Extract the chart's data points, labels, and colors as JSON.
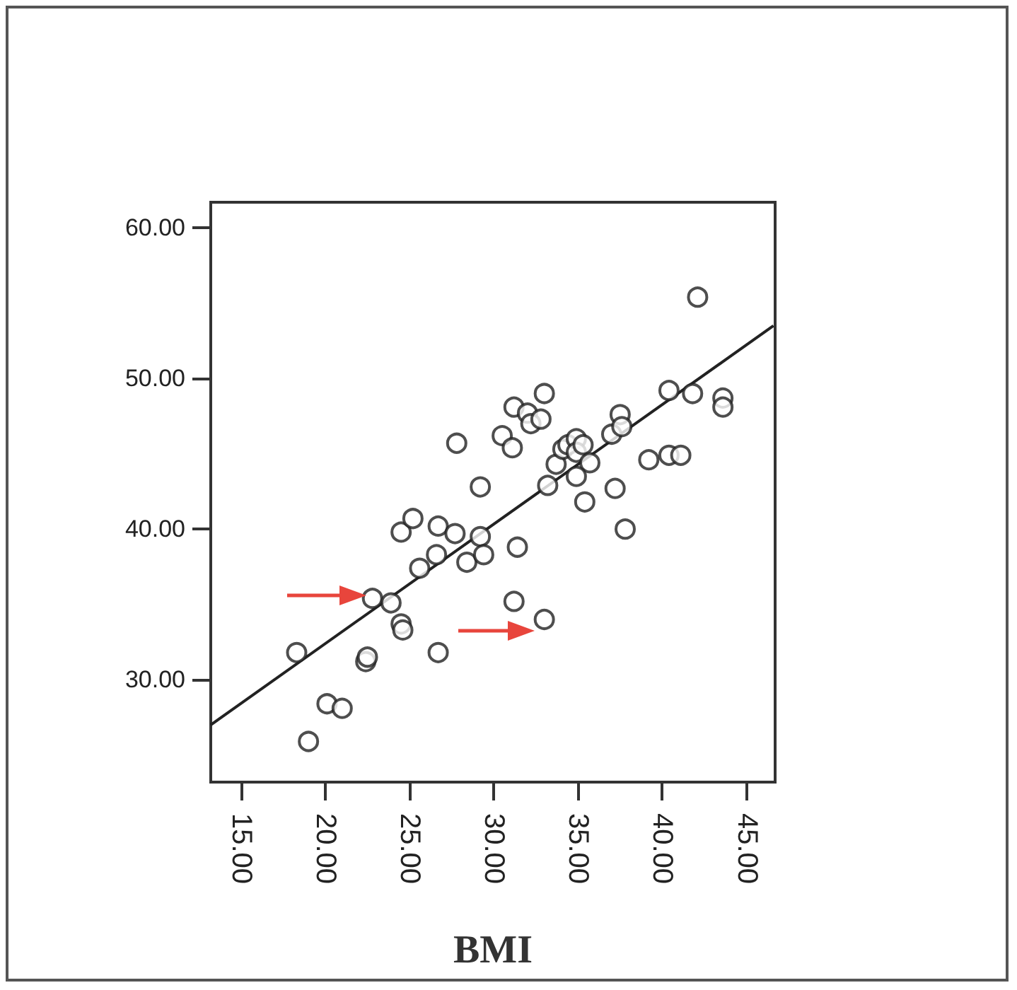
{
  "chart_data": {
    "type": "scatter",
    "xlabel": "BMI",
    "xlim": [
      13.2,
      46.7
    ],
    "ylim": [
      23.2,
      61.7
    ],
    "xticks": [
      {
        "value": 15,
        "label": "15.00"
      },
      {
        "value": 20,
        "label": "20.00"
      },
      {
        "value": 25,
        "label": "25.00"
      },
      {
        "value": 30,
        "label": "30.00"
      },
      {
        "value": 35,
        "label": "35.00"
      },
      {
        "value": 40,
        "label": "40.00"
      },
      {
        "value": 45,
        "label": "45.00"
      }
    ],
    "yticks": [
      {
        "value": 30,
        "label": "30.00"
      },
      {
        "value": 40,
        "label": "40.00"
      },
      {
        "value": 50,
        "label": "50.00"
      },
      {
        "value": 60,
        "label": "60.00"
      }
    ],
    "grid": false,
    "marker": "circle",
    "series": [
      {
        "color": "#222222",
        "x": [
          18.3,
          19.0,
          20.1,
          21.0,
          22.4,
          22.5,
          22.8,
          23.9,
          24.5,
          24.6,
          24.5,
          25.2,
          25.6,
          26.6,
          26.7,
          26.7,
          27.7,
          27.8,
          28.4,
          29.2,
          29.2,
          29.4,
          31.4,
          31.2,
          33.0,
          30.5,
          31.1,
          31.2,
          32.0,
          32.2,
          32.8,
          33.0,
          33.2,
          33.7,
          34.1,
          34.4,
          34.9,
          34.9,
          35.3,
          35.7,
          34.9,
          35.4,
          37.2,
          37.8,
          37.0,
          37.5,
          37.6,
          39.2,
          40.4,
          41.1,
          40.4,
          41.8,
          43.6,
          43.6,
          42.1
        ],
        "values": [
          31.8,
          25.9,
          28.4,
          28.1,
          31.2,
          31.5,
          35.4,
          35.1,
          33.7,
          33.3,
          39.8,
          40.7,
          37.4,
          38.3,
          40.2,
          31.8,
          39.7,
          45.7,
          37.8,
          42.8,
          39.5,
          38.3,
          38.8,
          35.2,
          34.0,
          46.2,
          45.4,
          48.1,
          47.7,
          47.0,
          47.3,
          49.0,
          42.9,
          44.3,
          45.3,
          45.6,
          46.0,
          45.1,
          45.6,
          44.4,
          43.5,
          41.8,
          42.7,
          40.0,
          46.3,
          47.6,
          46.8,
          44.6,
          44.9,
          44.9,
          49.2,
          49.0,
          48.7,
          48.1,
          55.4
        ]
      },
      {
        "type": "line",
        "color": "#222222",
        "marker": "none",
        "line_style": "solid",
        "x": [
          13.2,
          46.6
        ],
        "values": [
          27.0,
          53.5
        ]
      }
    ]
  }
}
